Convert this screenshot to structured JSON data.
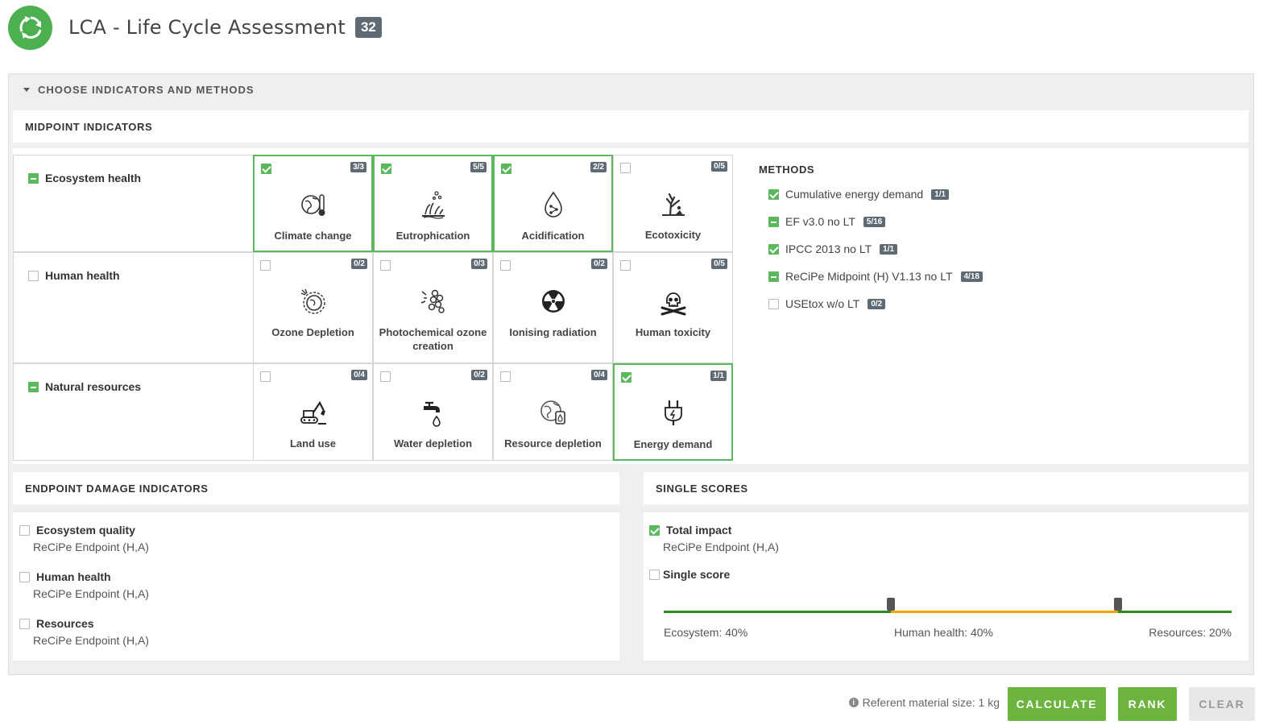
{
  "header": {
    "title": "LCA - Life Cycle Assessment",
    "count": "32",
    "logo_icon": "recycle-icon"
  },
  "choose_section": {
    "title": "CHOOSE INDICATORS AND METHODS"
  },
  "midpoint": {
    "title": "MIDPOINT INDICATORS",
    "rows": [
      {
        "label": "Ecosystem health",
        "state": "partial",
        "cells": [
          {
            "name": "Climate change",
            "ratio": "3/3",
            "checked": true,
            "icon": "climate-change-icon"
          },
          {
            "name": "Eutrophication",
            "ratio": "5/5",
            "checked": true,
            "icon": "eutrophication-icon"
          },
          {
            "name": "Acidification",
            "ratio": "2/2",
            "checked": true,
            "icon": "acidification-icon"
          },
          {
            "name": "Ecotoxicity",
            "ratio": "0/5",
            "checked": false,
            "icon": "ecotoxicity-icon"
          }
        ]
      },
      {
        "label": "Human health",
        "state": "unchecked",
        "cells": [
          {
            "name": "Ozone Depletion",
            "ratio": "0/2",
            "checked": false,
            "icon": "ozone-depletion-icon"
          },
          {
            "name": "Photochemical ozone creation",
            "ratio": "0/3",
            "checked": false,
            "icon": "photochemical-ozone-icon"
          },
          {
            "name": "Ionising radiation",
            "ratio": "0/2",
            "checked": false,
            "icon": "radiation-icon"
          },
          {
            "name": "Human toxicity",
            "ratio": "0/5",
            "checked": false,
            "icon": "skull-icon"
          }
        ]
      },
      {
        "label": "Natural resources",
        "state": "partial",
        "cells": [
          {
            "name": "Land use",
            "ratio": "0/4",
            "checked": false,
            "icon": "excavator-icon"
          },
          {
            "name": "Water depletion",
            "ratio": "0/2",
            "checked": false,
            "icon": "water-tap-icon"
          },
          {
            "name": "Resource depletion",
            "ratio": "0/4",
            "checked": false,
            "icon": "resource-depletion-icon"
          },
          {
            "name": "Energy demand",
            "ratio": "1/1",
            "checked": true,
            "icon": "power-plug-icon"
          }
        ]
      }
    ]
  },
  "methods": {
    "title": "METHODS",
    "items": [
      {
        "label": "Cumulative energy demand",
        "ratio": "1/1",
        "state": "checked"
      },
      {
        "label": "EF v3.0 no LT",
        "ratio": "5/16",
        "state": "partial"
      },
      {
        "label": "IPCC 2013 no LT",
        "ratio": "1/1",
        "state": "checked"
      },
      {
        "label": "ReCiPe Midpoint (H) V1.13 no LT",
        "ratio": "4/18",
        "state": "partial"
      },
      {
        "label": "USEtox w/o LT",
        "ratio": "0/2",
        "state": "unchecked"
      }
    ]
  },
  "endpoint": {
    "title": "ENDPOINT DAMAGE INDICATORS",
    "items": [
      {
        "label": "Ecosystem quality",
        "method": "ReCiPe Endpoint (H,A)",
        "checked": false
      },
      {
        "label": "Human health",
        "method": "ReCiPe Endpoint (H,A)",
        "checked": false
      },
      {
        "label": "Resources",
        "method": "ReCiPe Endpoint (H,A)",
        "checked": false
      }
    ]
  },
  "single_scores": {
    "title": "SINGLE SCORES",
    "total_impact": {
      "label": "Total impact",
      "method": "ReCiPe Endpoint (H,A)",
      "checked": true
    },
    "single_score": {
      "label": "Single score",
      "checked": false
    },
    "weights": {
      "ecosystem_label": "Ecosystem: 40%",
      "human_health_label": "Human health: 40%",
      "resources_label": "Resources: 20%",
      "ecosystem": 0.4,
      "human_health": 0.4,
      "resources": 0.2
    },
    "colors": {
      "ecosystem": "#2e8b1f",
      "human_health": "#f0a500",
      "resources": "#2e8b1f"
    }
  },
  "footer": {
    "info_icon": "info-icon",
    "ref_text": "Referent material size: 1 kg",
    "calculate": "CALCULATE",
    "rank": "RANK",
    "clear": "CLEAR"
  },
  "colors": {
    "accent": "#6cb33f",
    "check": "#5cb85c",
    "badge": "#5f6b74"
  }
}
